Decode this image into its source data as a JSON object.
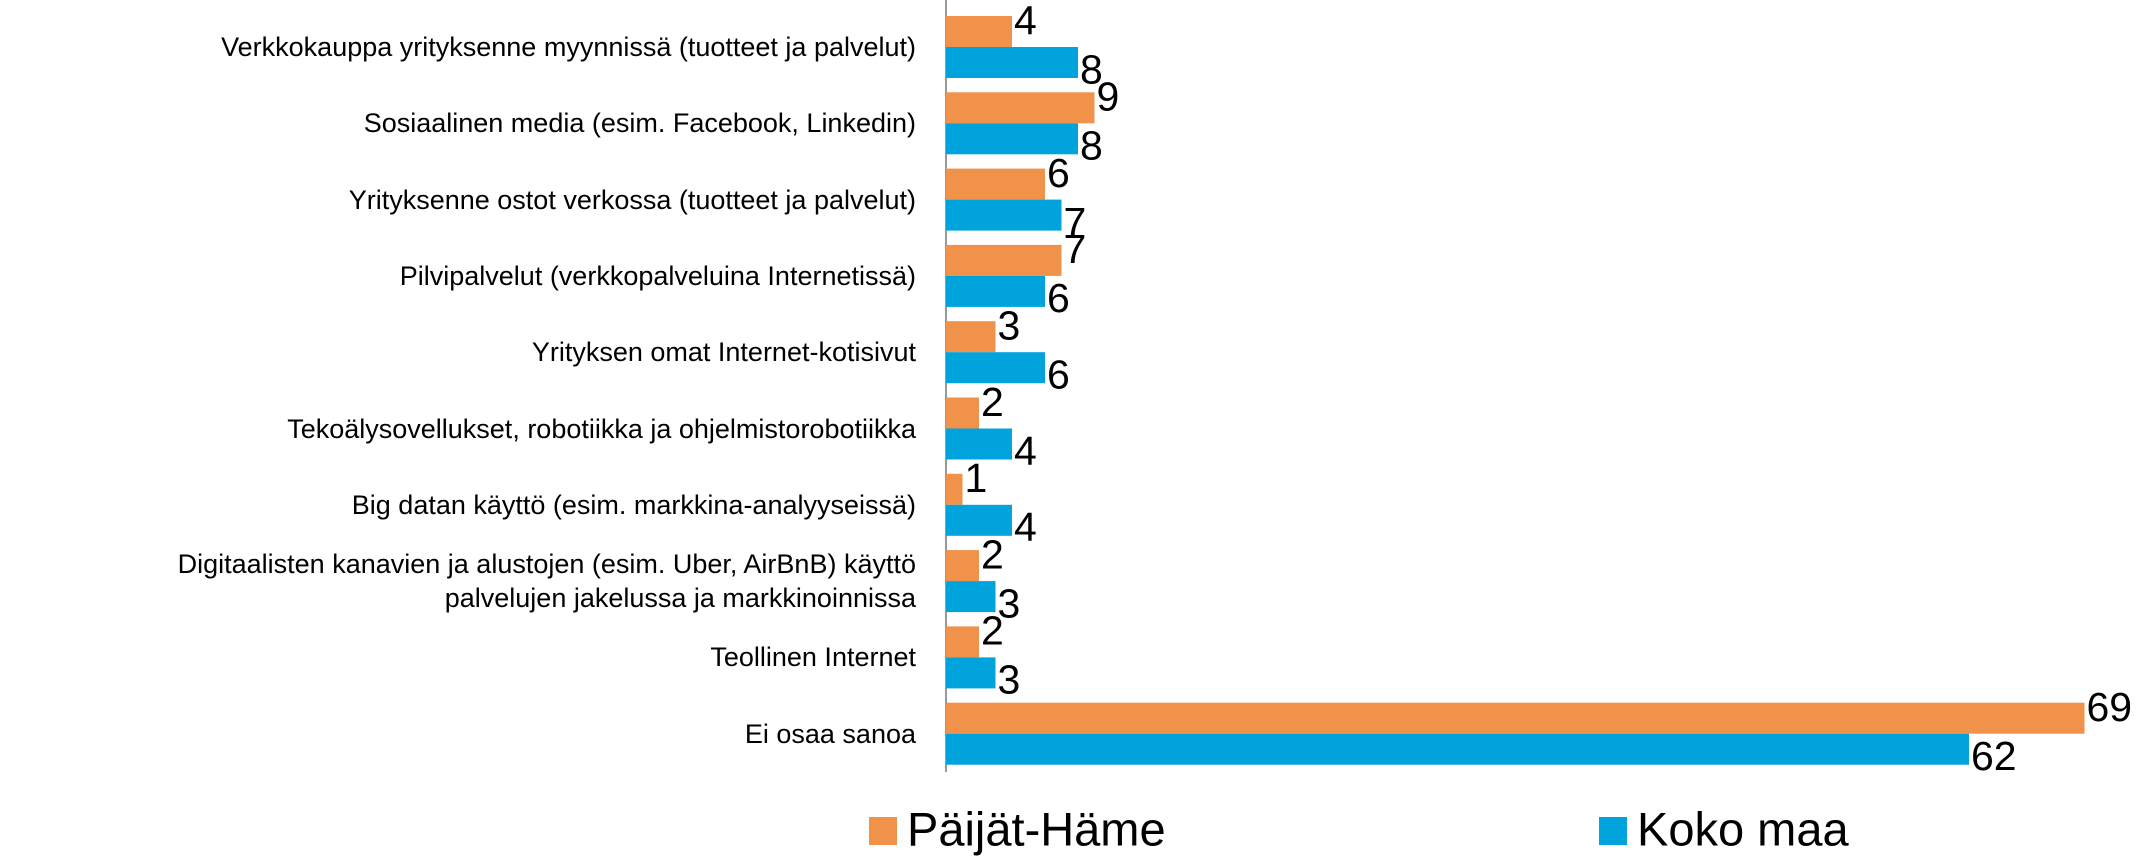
{
  "chart_data": {
    "type": "hbar",
    "categories": [
      "Verkkokauppa yrityksenne myynnissä (tuotteet ja palvelut)",
      "Sosiaalinen media (esim. Facebook, Linkedin)",
      "Yrityksenne ostot verkossa (tuotteet ja palvelut)",
      "Pilvipalvelut  (verkkopalveluina Internetissä)",
      "Yrityksen omat Internet-kotisivut",
      "Tekoälysovellukset, robotiikka ja ohjelmistorobotiikka",
      "Big datan käyttö (esim. markkina-analyyseissä)",
      "Digitaalisten kanavien ja alustojen (esim. Uber, AirBnB) käyttö\npalvelujen jakelussa ja markkinoinnissa",
      "Teollinen Internet",
      "Ei osaa sanoa"
    ],
    "series": [
      {
        "name": "Päijät-Häme",
        "color": "#f0924a",
        "values": [
          4,
          9,
          6,
          7,
          3,
          2,
          1,
          2,
          2,
          69
        ]
      },
      {
        "name": "Koko maa",
        "color": "#00a3dc",
        "values": [
          8,
          8,
          7,
          6,
          6,
          4,
          4,
          3,
          3,
          62
        ]
      }
    ],
    "legend": "bottom"
  }
}
